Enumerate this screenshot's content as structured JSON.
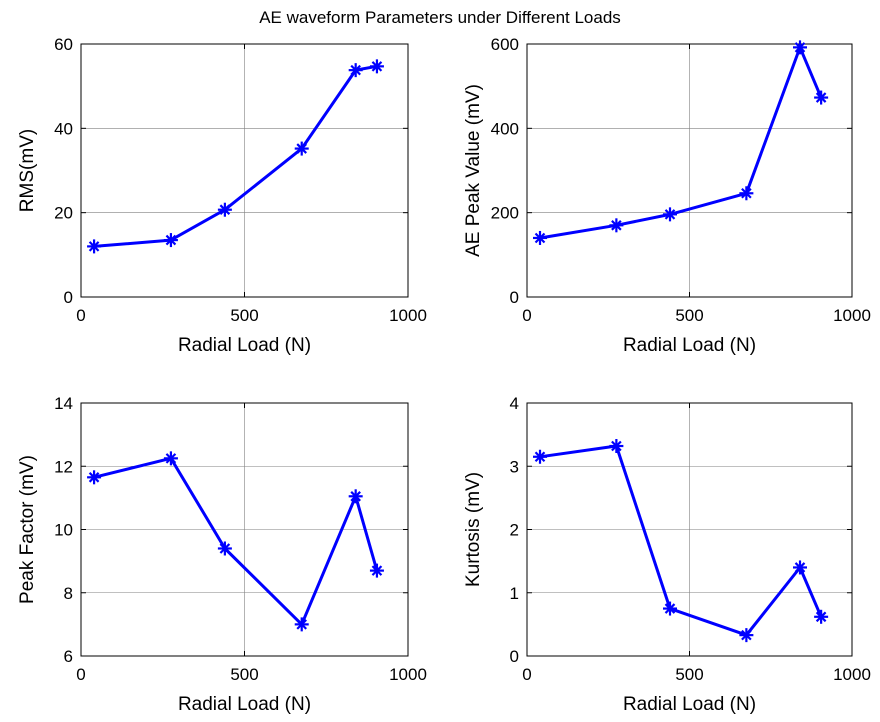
{
  "figure_title": "AE waveform Parameters under Different Loads",
  "colors": {
    "series": "#0000ff",
    "axis": "#000000",
    "grid": "#808080",
    "background": "#ffffff"
  },
  "chart_data": [
    {
      "type": "line",
      "title": "",
      "xlabel": "Radial Load (N)",
      "ylabel": "RMS(mV)",
      "xlim": [
        0,
        1000
      ],
      "ylim": [
        0,
        60
      ],
      "xticks": [
        0,
        500,
        1000
      ],
      "yticks": [
        0,
        20,
        40,
        60
      ],
      "grid": true,
      "marker": "star",
      "x": [
        40,
        275,
        440,
        675,
        840,
        905
      ],
      "y": [
        12,
        13.5,
        20.7,
        35.2,
        53.8,
        54.7
      ]
    },
    {
      "type": "line",
      "title": "",
      "xlabel": "Radial Load (N)",
      "ylabel": "AE Peak Value (mV)",
      "xlim": [
        0,
        1000
      ],
      "ylim": [
        0,
        600
      ],
      "xticks": [
        0,
        500,
        1000
      ],
      "yticks": [
        0,
        200,
        400,
        600
      ],
      "grid": true,
      "marker": "star",
      "x": [
        40,
        275,
        440,
        675,
        840,
        905
      ],
      "y": [
        140,
        170,
        196,
        246,
        592,
        473
      ]
    },
    {
      "type": "line",
      "title": "",
      "xlabel": "Radial Load (N)",
      "ylabel": "Peak Factor (mV)",
      "xlim": [
        0,
        1000
      ],
      "ylim": [
        6,
        14
      ],
      "xticks": [
        0,
        500,
        1000
      ],
      "yticks": [
        6,
        8,
        10,
        12,
        14
      ],
      "grid": true,
      "marker": "star",
      "x": [
        40,
        275,
        440,
        675,
        840,
        905
      ],
      "y": [
        11.65,
        12.25,
        9.4,
        7.0,
        11.05,
        8.7
      ]
    },
    {
      "type": "line",
      "title": "",
      "xlabel": "Radial Load (N)",
      "ylabel": "Kurtosis (mV)",
      "xlim": [
        0,
        1000
      ],
      "ylim": [
        0,
        4
      ],
      "xticks": [
        0,
        500,
        1000
      ],
      "yticks": [
        0,
        1,
        2,
        3,
        4
      ],
      "grid": true,
      "marker": "star",
      "x": [
        40,
        275,
        440,
        675,
        840,
        905
      ],
      "y": [
        3.15,
        3.32,
        0.75,
        0.33,
        1.4,
        0.62
      ]
    }
  ]
}
